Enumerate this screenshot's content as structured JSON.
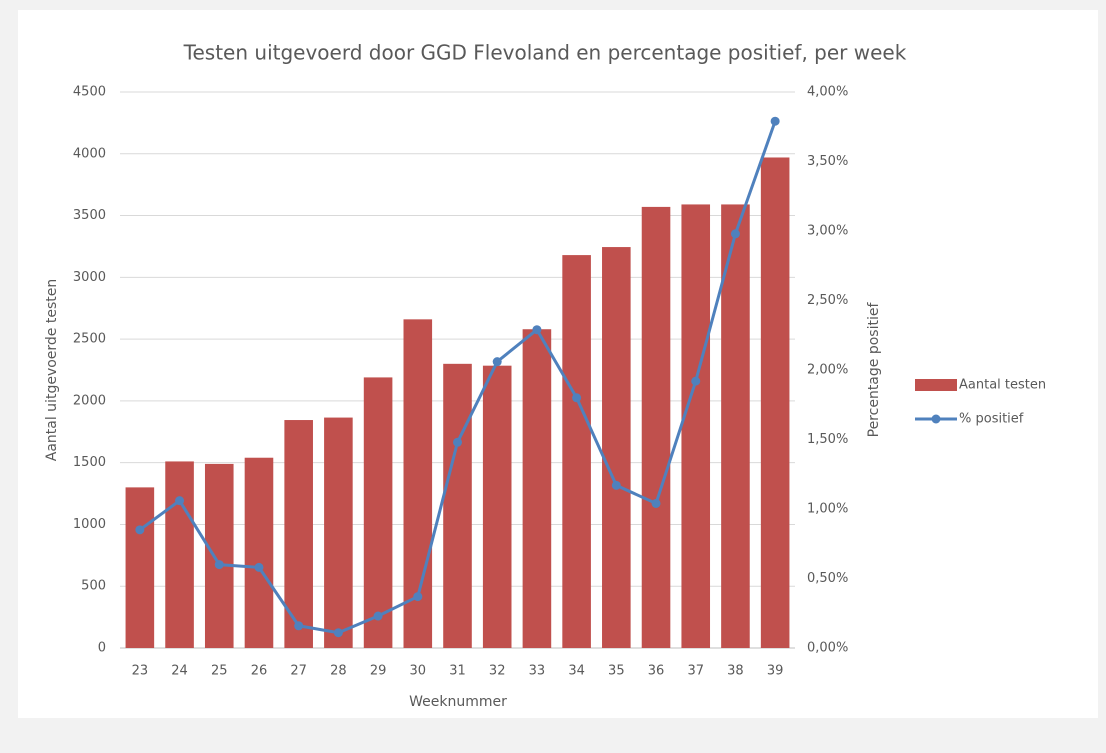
{
  "chart_data": {
    "type": "bar",
    "title": "Testen uitgevoerd door GGD Flevoland en percentage positief, per week",
    "x_label": "Weeknummer",
    "y_label": "Aantal uitgevoerde testen",
    "y2_label": "Percentage positief",
    "categories": [
      "23",
      "24",
      "25",
      "26",
      "27",
      "28",
      "29",
      "30",
      "31",
      "32",
      "33",
      "34",
      "35",
      "36",
      "37",
      "38",
      "39"
    ],
    "series": [
      {
        "name": "Aantal testen",
        "type": "bar",
        "color": "#c0504d",
        "values": [
          1300,
          1510,
          1490,
          1540,
          1845,
          1865,
          2190,
          2660,
          2300,
          2285,
          2580,
          3180,
          3245,
          3570,
          3590,
          3590,
          3970
        ]
      },
      {
        "name": "% positief",
        "type": "line",
        "axis": "y2",
        "color": "#4f81bd",
        "values": [
          0.85,
          1.06,
          0.6,
          0.58,
          0.16,
          0.11,
          0.23,
          0.37,
          1.48,
          2.06,
          2.29,
          1.8,
          1.17,
          1.04,
          1.92,
          2.98,
          3.79
        ]
      }
    ],
    "ylim": [
      0,
      4500
    ],
    "yticks": [
      0,
      500,
      1000,
      1500,
      2000,
      2500,
      3000,
      3500,
      4000,
      4500
    ],
    "y2lim": [
      0,
      4
    ],
    "y2ticks": [
      {
        "value": 0,
        "label": "0,00%"
      },
      {
        "value": 0.5,
        "label": "0,50%"
      },
      {
        "value": 1,
        "label": "1,00%"
      },
      {
        "value": 1.5,
        "label": "1,50%"
      },
      {
        "value": 2,
        "label": "2,00%"
      },
      {
        "value": 2.5,
        "label": "2,50%"
      },
      {
        "value": 3,
        "label": "3,00%"
      },
      {
        "value": 3.5,
        "label": "3,50%"
      },
      {
        "value": 4,
        "label": "4,00%"
      }
    ],
    "grid": true,
    "legend": "right"
  }
}
